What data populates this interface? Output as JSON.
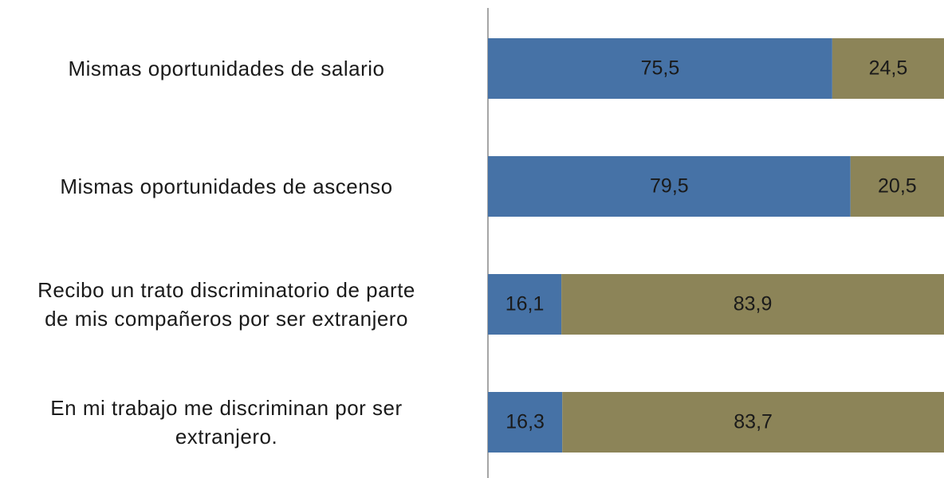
{
  "chart_data": {
    "type": "stacked-bar-horizontal",
    "categories": [
      "Mismas oportunidades de salario",
      "Mismas oportunidades de ascenso",
      "Recibo un trato discriminatorio de parte\nde mis compañeros por ser extranjero",
      "En mi trabajo me discriminan por ser\nextranjero."
    ],
    "series": [
      {
        "color": "#4672a6",
        "values": [
          75.5,
          79.5,
          16.1,
          16.3
        ],
        "value_labels": [
          "75,5",
          "79,5",
          "16,1",
          "16,3"
        ]
      },
      {
        "color": "#8c8458",
        "values": [
          24.5,
          20.5,
          83.9,
          83.7
        ],
        "value_labels": [
          "24,5",
          "20,5",
          "83,9",
          "83,7"
        ]
      }
    ],
    "xlim": [
      0,
      100
    ]
  }
}
